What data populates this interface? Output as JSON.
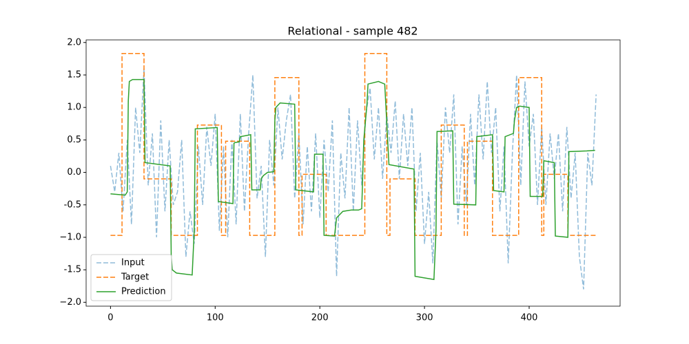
{
  "chart_data": {
    "type": "line",
    "title": "Relational - sample 482",
    "xlim": [
      -23.3,
      486.9
    ],
    "ylim": [
      -2.06,
      2.04
    ],
    "xticks": [
      0,
      100,
      200,
      300,
      400
    ],
    "yticks": [
      {
        "value": -2.0,
        "label": "−2.0"
      },
      -1.5,
      {
        "value": -1.0,
        "label": "−1.0"
      },
      -0.5,
      {
        "value": 0.0,
        "label": "0.0"
      },
      0.5,
      {
        "value": 1.0,
        "label": "1.0"
      },
      1.5,
      {
        "value": 2.0,
        "label": "2.0"
      }
    ],
    "legend": "lower left",
    "series": [
      {
        "name": "Input",
        "color": "#1f77b4",
        "dash": "dashed",
        "opacity": 0.5,
        "x": [
          0,
          4,
          8,
          12,
          16,
          20,
          24,
          28,
          32,
          36,
          40,
          44,
          48,
          52,
          56,
          60,
          64,
          68,
          72,
          76,
          80,
          84,
          88,
          92,
          96,
          100,
          104,
          108,
          112,
          116,
          120,
          124,
          128,
          132,
          136,
          140,
          144,
          148,
          152,
          156,
          160,
          164,
          168,
          172,
          176,
          180,
          184,
          188,
          192,
          196,
          200,
          204,
          208,
          212,
          216,
          220,
          224,
          228,
          232,
          236,
          240,
          244,
          248,
          252,
          256,
          260,
          264,
          268,
          272,
          276,
          280,
          284,
          288,
          292,
          296,
          300,
          304,
          308,
          312,
          316,
          320,
          324,
          328,
          332,
          336,
          340,
          344,
          348,
          352,
          356,
          360,
          364,
          368,
          372,
          376,
          380,
          384,
          388,
          392,
          396,
          400,
          404,
          408,
          412,
          416,
          420,
          424,
          428,
          432,
          436,
          440,
          444,
          448,
          452,
          456,
          460,
          464
        ],
        "values": [
          0.1,
          -0.3,
          0.3,
          -0.6,
          0.5,
          -0.8,
          1.0,
          0.3,
          1.6,
          -0.2,
          0.6,
          -1.0,
          0.8,
          -0.6,
          0.5,
          -0.5,
          -0.3,
          0.5,
          -1.3,
          -0.6,
          -1.1,
          0.4,
          -0.5,
          0.7,
          0.1,
          0.9,
          -0.9,
          0.4,
          -1.0,
          0.5,
          -0.8,
          0.9,
          -0.6,
          0.6,
          1.5,
          -0.4,
          0.1,
          -1.3,
          0.5,
          -0.2,
          1.0,
          0.2,
          0.8,
          1.2,
          -0.4,
          0.6,
          -0.8,
          0.4,
          -0.6,
          0.6,
          -0.7,
          0.5,
          -0.3,
          0.8,
          -1.6,
          0.3,
          -0.4,
          1.0,
          -0.6,
          0.8,
          -0.2,
          0.9,
          1.3,
          0.2,
          1.0,
          -0.1,
          0.9,
          0.3,
          1.1,
          -0.1,
          0.9,
          0.1,
          1.0,
          -0.6,
          0.3,
          -1.1,
          -0.3,
          -1.4,
          0.5,
          -0.4,
          1.0,
          0.3,
          1.2,
          -0.8,
          0.4,
          -0.5,
          0.9,
          -0.2,
          1.2,
          0.2,
          1.4,
          0.3,
          1.0,
          -0.6,
          0.4,
          -1.4,
          0.3,
          1.5,
          -0.2,
          1.4,
          0.4,
          0.9,
          -0.5,
          0.7,
          -0.5,
          0.6,
          -0.1,
          0.6,
          -0.6,
          0.7,
          -0.4,
          0.3,
          -1.3,
          -1.8,
          0.3,
          -0.2,
          1.2
        ]
      },
      {
        "name": "Target",
        "color": "#ff7f0e",
        "dash": "dashed",
        "opacity": 1,
        "x": [
          0,
          11,
          11,
          32,
          32,
          58,
          58,
          83,
          83,
          106,
          106,
          110,
          110,
          133,
          133,
          157,
          157,
          180,
          180,
          183,
          183,
          206,
          206,
          243,
          243,
          264,
          264,
          267,
          267,
          291,
          291,
          316,
          316,
          338,
          338,
          341,
          341,
          365,
          365,
          390,
          390,
          412,
          412,
          414,
          414,
          437,
          437,
          465
        ],
        "values": [
          -0.97,
          -0.97,
          1.83,
          1.83,
          -0.1,
          -0.1,
          -0.97,
          -0.97,
          0.73,
          0.73,
          -0.97,
          -0.97,
          0.48,
          0.48,
          -0.97,
          -0.97,
          1.46,
          1.46,
          -0.97,
          -0.97,
          -0.03,
          -0.03,
          -0.97,
          -0.97,
          1.83,
          1.83,
          -0.97,
          -0.97,
          -0.1,
          -0.1,
          -0.97,
          -0.97,
          0.73,
          0.73,
          -0.97,
          -0.97,
          0.48,
          0.48,
          -0.97,
          -0.97,
          1.46,
          1.46,
          -0.97,
          -0.97,
          -0.03,
          -0.03,
          -0.97,
          -0.97
        ]
      },
      {
        "name": "Prediction",
        "color": "#2ca02c",
        "dash": "solid",
        "opacity": 1,
        "x": [
          0,
          14,
          16,
          17,
          18,
          21,
          32,
          33,
          57,
          58,
          59,
          63,
          78,
          80,
          81,
          102,
          103,
          117,
          118,
          119,
          123,
          124,
          134,
          135,
          143,
          144,
          146,
          150,
          156,
          157,
          158,
          162,
          176,
          177,
          194,
          195,
          203,
          204,
          214,
          216,
          222,
          230,
          237,
          240,
          242,
          245,
          246,
          256,
          262,
          266,
          290,
          291,
          309,
          311,
          312,
          327,
          328,
          349,
          350,
          365,
          366,
          376,
          377,
          385,
          386,
          388,
          391,
          400,
          401,
          413,
          414,
          424,
          425,
          437,
          438,
          455,
          463
        ],
        "values": [
          -0.33,
          -0.35,
          -0.3,
          1.1,
          1.4,
          1.43,
          1.43,
          0.15,
          0.1,
          -1.28,
          -1.5,
          -1.55,
          -1.58,
          -0.9,
          0.67,
          0.69,
          -0.45,
          -0.48,
          0.45,
          0.46,
          0.47,
          0.55,
          0.58,
          -0.27,
          -0.27,
          -0.1,
          -0.05,
          0.0,
          0.01,
          0.8,
          1.0,
          1.07,
          1.05,
          -0.27,
          -0.3,
          0.28,
          0.28,
          -0.97,
          -0.98,
          -0.7,
          -0.6,
          -0.58,
          -0.58,
          -0.56,
          0.5,
          1.05,
          1.36,
          1.4,
          1.36,
          0.12,
          0.05,
          -1.6,
          -1.65,
          -0.9,
          0.63,
          0.64,
          -0.49,
          -0.5,
          0.55,
          0.58,
          -0.28,
          -0.3,
          0.55,
          0.6,
          0.8,
          1.0,
          1.02,
          1.0,
          -0.37,
          -0.37,
          0.18,
          0.15,
          -0.98,
          -1.0,
          0.32,
          0.33,
          0.34
        ]
      }
    ]
  }
}
